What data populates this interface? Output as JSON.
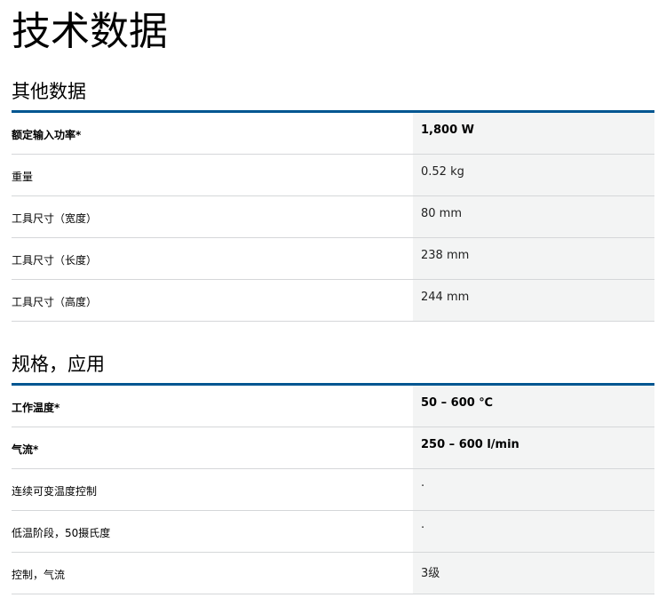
{
  "title": "技术数据",
  "sections": [
    {
      "heading": "其他数据",
      "rows": [
        {
          "label": "额定输入功率*",
          "value": "1,800 W",
          "bold": true
        },
        {
          "label": "重量",
          "value": "0.52 kg",
          "bold": false
        },
        {
          "label": "工具尺寸（宽度）",
          "value": "80 mm",
          "bold": false
        },
        {
          "label": "工具尺寸（长度）",
          "value": "238 mm",
          "bold": false
        },
        {
          "label": "工具尺寸（高度）",
          "value": "244 mm",
          "bold": false
        }
      ]
    },
    {
      "heading": "规格，应用",
      "rows": [
        {
          "label": "工作温度*",
          "value": "50 – 600 ℃",
          "bold": true
        },
        {
          "label": "气流*",
          "value": "250 – 600 l/min",
          "bold": true
        },
        {
          "label": "连续可变温度控制",
          "value": "·",
          "bold": false
        },
        {
          "label": "低温阶段，50摄氏度",
          "value": "·",
          "bold": false
        },
        {
          "label": "控制，气流",
          "value": "3级",
          "bold": false
        }
      ]
    }
  ],
  "colors": {
    "accent": "#005691",
    "value_bg": "#f3f4f4"
  }
}
